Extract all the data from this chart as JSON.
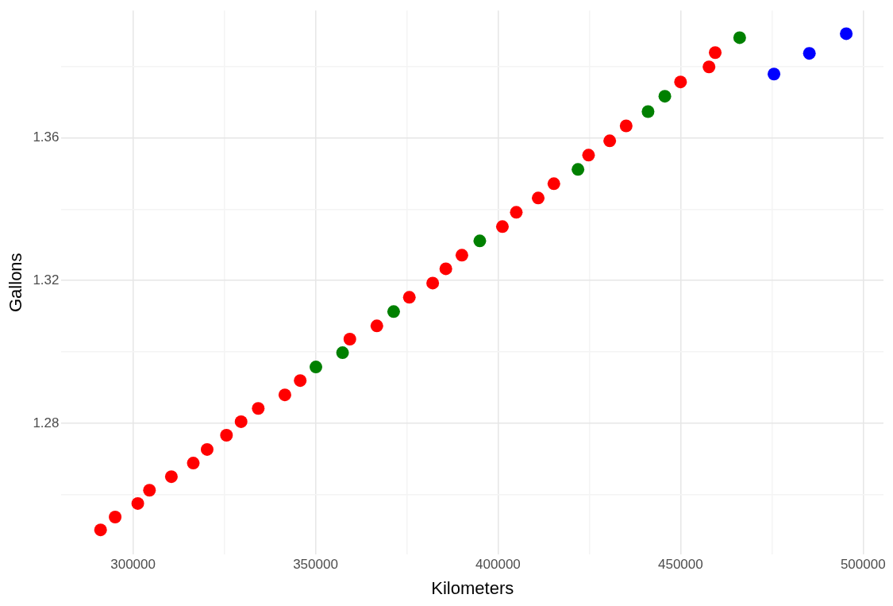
{
  "chart_data": {
    "type": "scatter",
    "xlabel": "Kilometers",
    "ylabel": "Gallons",
    "xlim": [
      280400,
      505600
    ],
    "ylim": [
      1.2433,
      1.3956
    ],
    "xticks": [
      300000,
      {
        "value": 325000,
        "label": null
      },
      350000,
      {
        "value": 375000,
        "label": null
      },
      400000,
      {
        "value": 425000,
        "label": null
      },
      450000,
      {
        "value": 475000,
        "label": null
      },
      500000
    ],
    "yticks": [
      {
        "value": 1.26,
        "label": null
      },
      {
        "value": 1.28,
        "label": "1.28"
      },
      {
        "value": 1.3,
        "label": null
      },
      {
        "value": 1.32,
        "label": "1.32"
      },
      {
        "value": 1.34,
        "label": null
      },
      {
        "value": 1.36,
        "label": "1.36"
      },
      {
        "value": 1.38,
        "label": null
      }
    ],
    "grid": true,
    "legend": false,
    "marker": "circle",
    "series": [
      {
        "color": "#ff0000",
        "x": [
          291100,
          295100,
          301300,
          304500,
          310500,
          316500,
          320300,
          325600,
          329600,
          334300,
          341600,
          345800,
          359400,
          366800,
          375700,
          382100,
          385700,
          390100,
          401200,
          405000,
          411000,
          415300,
          424800,
          430600,
          435100,
          450000,
          457800,
          459500
        ],
        "values": [
          1.2502,
          1.2538,
          1.2576,
          1.2613,
          1.2651,
          1.2689,
          1.2727,
          1.2767,
          1.2805,
          1.2842,
          1.288,
          1.292,
          1.3036,
          1.3073,
          1.3153,
          1.3193,
          1.3233,
          1.3271,
          1.3351,
          1.3391,
          1.3431,
          1.3471,
          1.3551,
          1.3591,
          1.3633,
          1.3756,
          1.3798,
          1.3838
        ]
      },
      {
        "color": "#008000",
        "x": [
          350100,
          357400,
          371400,
          395000,
          421900,
          441100,
          445700,
          466200
        ],
        "values": [
          1.2958,
          1.2998,
          1.3113,
          1.3311,
          1.3511,
          1.3673,
          1.3716,
          1.388
        ]
      },
      {
        "color": "#0000ff",
        "x": [
          475600,
          485300,
          495400
        ],
        "values": [
          1.3778,
          1.3836,
          1.3891
        ]
      }
    ]
  }
}
